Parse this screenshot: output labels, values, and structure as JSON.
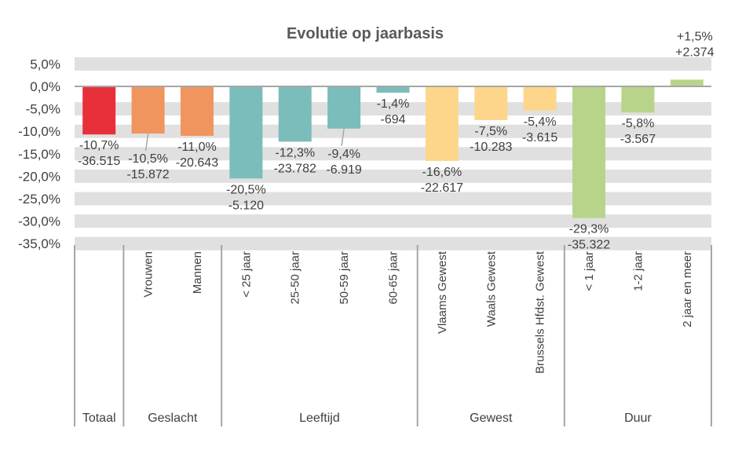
{
  "chart_data": {
    "type": "bar",
    "title": "Evolutie op jaarbasis",
    "xlabel": "",
    "ylabel": "",
    "ylim": [
      -35,
      5
    ],
    "yticks": [
      5,
      0,
      -5,
      -10,
      -15,
      -20,
      -25,
      -30,
      -35
    ],
    "ytick_labels": [
      "5,0%",
      "0,0%",
      "-5,0%",
      "-10,0%",
      "-15,0%",
      "-20,0%",
      "-25,0%",
      "-30,0%",
      "-35,0%"
    ],
    "grid": true,
    "legend": "none",
    "categories": [
      "",
      "Vrouwen",
      "Mannen",
      "< 25 jaar",
      "25-50 jaar",
      "50-59 jaar",
      "60-65 jaar",
      "Vlaams Gewest",
      "Waals Gewest",
      "Brussels Hfdst. Gewest",
      "< 1 jaar",
      "1-2 jaar",
      "2 jaar en meer"
    ],
    "bars": [
      {
        "category": "",
        "group": "Totaal",
        "value": -10.7,
        "pct_label": "-10,7%",
        "abs_label": "-36.515",
        "color": "#E8303A"
      },
      {
        "category": "Vrouwen",
        "group": "Geslacht",
        "value": -10.5,
        "pct_label": "-10,5%",
        "abs_label": "-15.872",
        "color": "#F0955E",
        "leader": true
      },
      {
        "category": "Mannen",
        "group": "Geslacht",
        "value": -11.0,
        "pct_label": "-11,0%",
        "abs_label": "-20.643",
        "color": "#F0955E"
      },
      {
        "category": "< 25 jaar",
        "group": "Leeftijd",
        "value": -20.5,
        "pct_label": "-20,5%",
        "abs_label": "-5.120",
        "color": "#7ABDBA"
      },
      {
        "category": "25-50 jaar",
        "group": "Leeftijd",
        "value": -12.3,
        "pct_label": "-12,3%",
        "abs_label": "-23.782",
        "color": "#7ABDBA"
      },
      {
        "category": "50-59 jaar",
        "group": "Leeftijd",
        "value": -9.4,
        "pct_label": "-9,4%",
        "abs_label": "-6.919",
        "color": "#7ABDBA",
        "leader": true
      },
      {
        "category": "60-65 jaar",
        "group": "Leeftijd",
        "value": -1.4,
        "pct_label": "-1,4%",
        "abs_label": "-694",
        "color": "#7ABDBA"
      },
      {
        "category": "Vlaams Gewest",
        "group": "Gewest",
        "value": -16.6,
        "pct_label": "-16,6%",
        "abs_label": "-22.617",
        "color": "#FDD68C"
      },
      {
        "category": "Waals Gewest",
        "group": "Gewest",
        "value": -7.5,
        "pct_label": "-7,5%",
        "abs_label": "-10.283",
        "color": "#FDD68C"
      },
      {
        "category": "Brussels Hfdst. Gewest",
        "group": "Gewest",
        "value": -5.4,
        "pct_label": "-5,4%",
        "abs_label": "-3.615",
        "color": "#FDD68C"
      },
      {
        "category": "< 1 jaar",
        "group": "Duur",
        "value": -29.3,
        "pct_label": "-29,3%",
        "abs_label": "-35.322",
        "color": "#B8D48A"
      },
      {
        "category": "1-2 jaar",
        "group": "Duur",
        "value": -5.8,
        "pct_label": "-5,8%",
        "abs_label": "-3.567",
        "color": "#B8D48A"
      },
      {
        "category": "2 jaar en meer",
        "group": "Duur",
        "value": 1.5,
        "pct_label": "+1,5%",
        "abs_label": "+2.374",
        "color": "#B8D48A"
      }
    ],
    "groups": [
      {
        "label": "Totaal",
        "count": 1
      },
      {
        "label": "Geslacht",
        "count": 2
      },
      {
        "label": "Leeftijd",
        "count": 4
      },
      {
        "label": "Gewest",
        "count": 3
      },
      {
        "label": "Duur",
        "count": 3
      }
    ],
    "colors": {
      "grid_band": "#E0E0E0",
      "axis": "#A6A6A6",
      "text": "#404040",
      "title": "#595959"
    }
  }
}
